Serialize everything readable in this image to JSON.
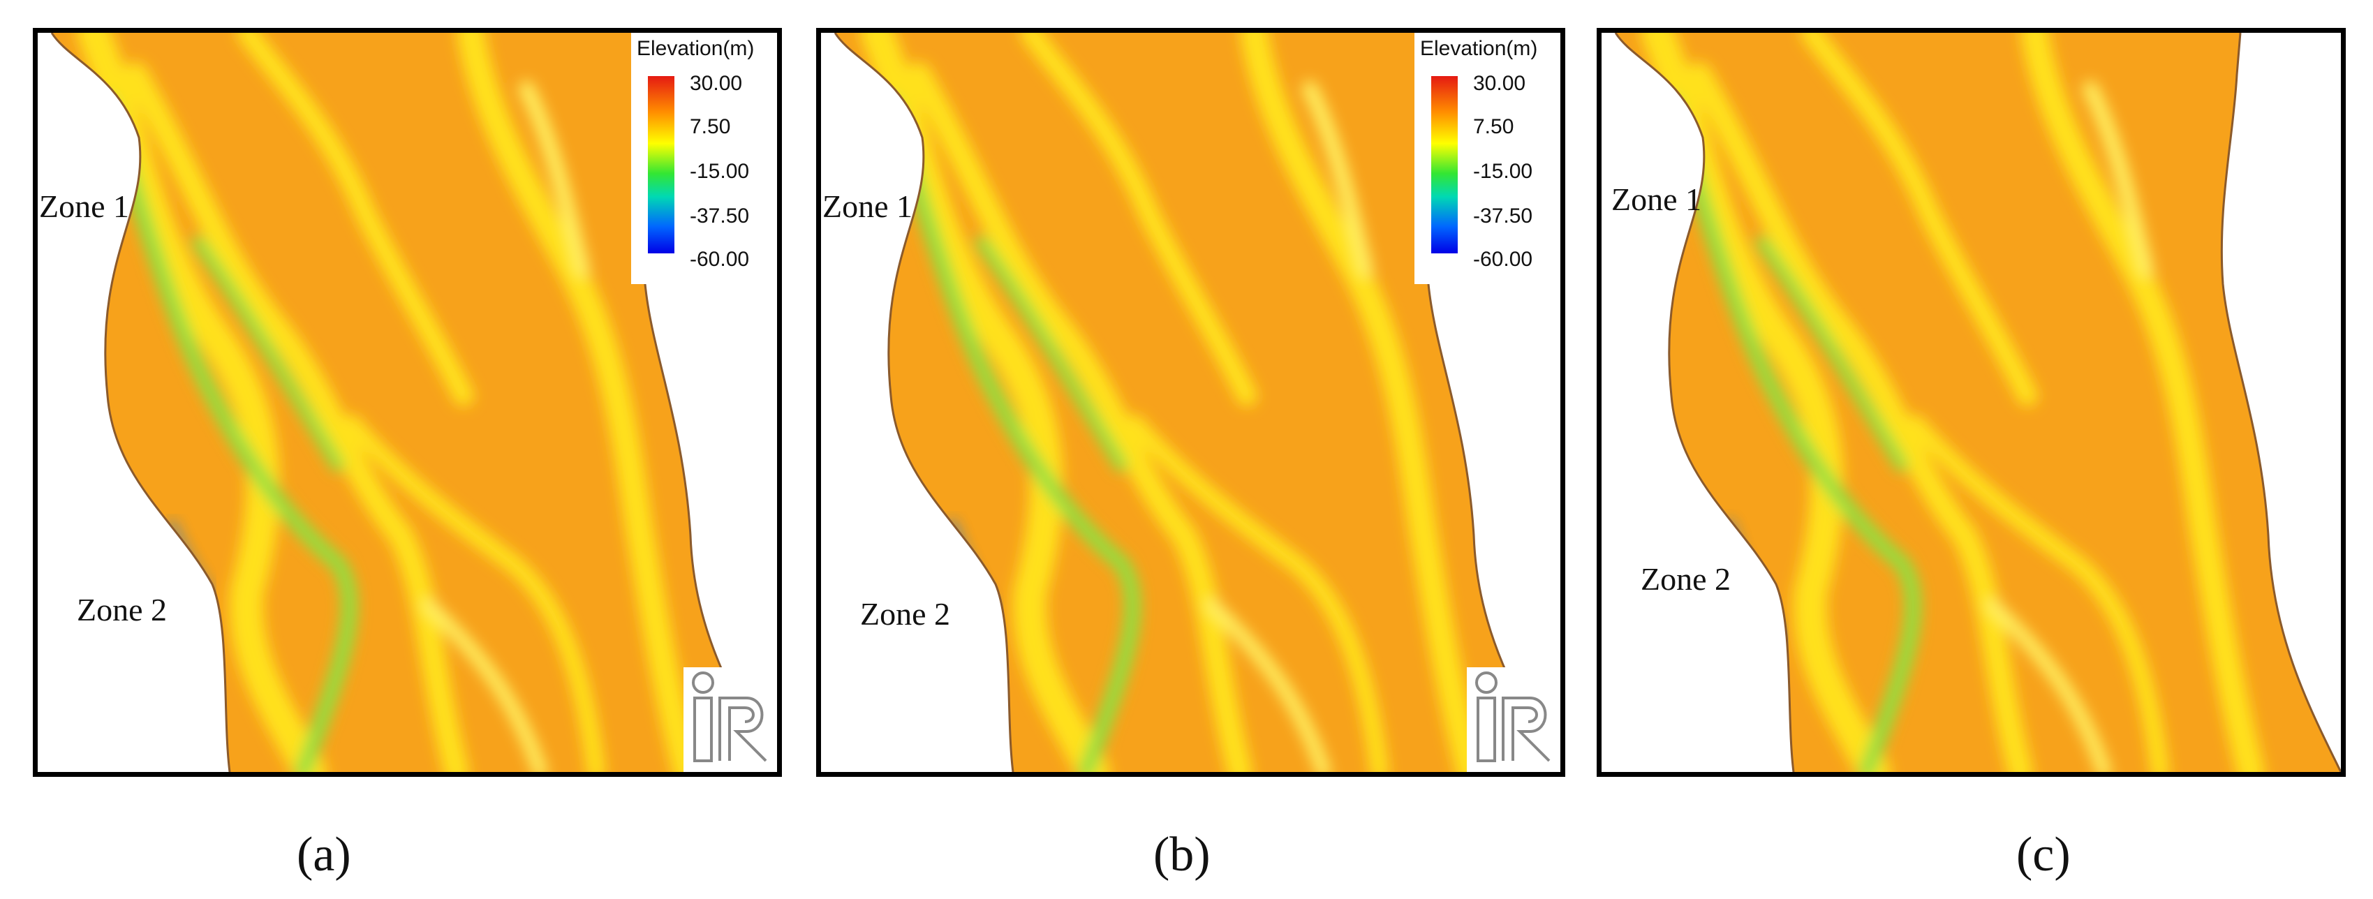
{
  "panels": [
    {
      "caption": "(a)",
      "zone1": "Zone 1",
      "zone2": "Zone 2",
      "has_legend": true,
      "has_logo": true
    },
    {
      "caption": "(b)",
      "zone1": "Zone 1",
      "zone2": "Zone 2",
      "has_legend": true,
      "has_logo": true
    },
    {
      "caption": "(c)",
      "zone1": "Zone 1",
      "zone2": "Zone 2",
      "has_legend": false,
      "has_logo": false
    }
  ],
  "legend": {
    "title": "Elevation(m)",
    "ticks": [
      "30.00",
      "7.50",
      "-15.00",
      "-37.50",
      "-60.00"
    ],
    "colors": [
      "#e51a12",
      "#ff8c00",
      "#ffff00",
      "#33e633",
      "#00d9b3",
      "#0066ff",
      "#0000e6"
    ]
  },
  "logo": {
    "icon": "iric-logo-icon"
  },
  "colors": {
    "bed_orange": "#f7a21b",
    "bar_yellow": "#ffe11a",
    "channel_green": "#7edc3a",
    "deep_blue": "#2a7cd0",
    "frame": "#000000"
  }
}
